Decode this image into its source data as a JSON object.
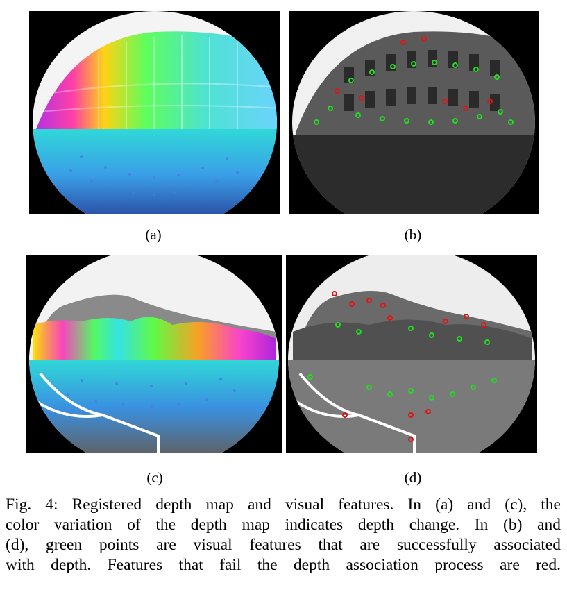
{
  "figure": {
    "subfigures": [
      {
        "id": "a",
        "label": "(a)"
      },
      {
        "id": "b",
        "label": "(b)"
      },
      {
        "id": "c",
        "label": "(c)"
      },
      {
        "id": "d",
        "label": "(d)"
      }
    ],
    "caption_lines": [
      "Fig. 4: Registered depth map and visual features. In (a) and (c), the",
      "color variation of the depth map indicates depth change. In (b) and",
      "(d), green points are visual features that are successfully associated",
      "with depth. Features that fail the depth association process are red."
    ],
    "colors": {
      "associated_feature": "#22dd22",
      "failed_feature": "#e01515",
      "depth_near": "#3a6ee8",
      "depth_mid": "#30e0e0",
      "depth_far": "#c020e0"
    }
  }
}
